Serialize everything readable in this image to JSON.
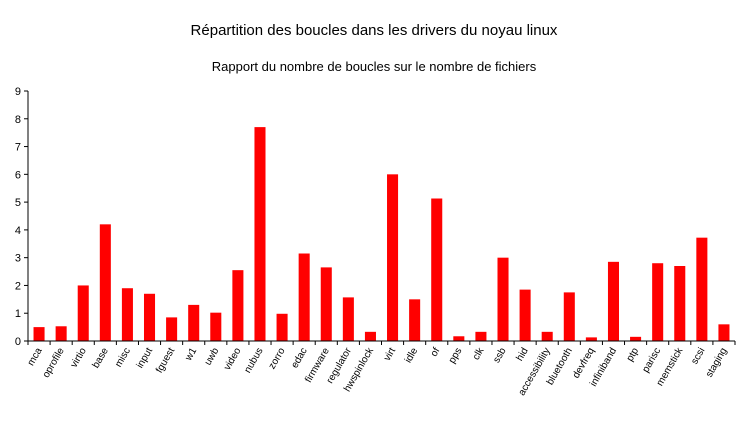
{
  "chart_data": {
    "type": "bar",
    "title": "Répartition des boucles dans les drivers du noyau linux",
    "subtitle": "Rapport du nombre de boucles sur le nombre de fichiers",
    "xlabel": "",
    "ylabel": "",
    "ylim": [
      0,
      9
    ],
    "yticks": [
      0,
      1,
      2,
      3,
      4,
      5,
      6,
      7,
      8,
      9
    ],
    "grid": false,
    "legend": "none",
    "bar_color": "#ff0000",
    "categories": [
      "mca",
      "oprofile",
      "virtio",
      "base",
      "misc",
      "input",
      "fguest",
      "w1",
      "uwb",
      "video",
      "nubus",
      "zorro",
      "edac",
      "firmware",
      "regulator",
      "hwspinlock",
      "virt",
      "idle",
      "of",
      "pps",
      "clk",
      "ssb",
      "hid",
      "accessibility",
      "bluetooth",
      "devfreq",
      "infiniband",
      "ptp",
      "parisc",
      "memstick",
      "scsi",
      "staging"
    ],
    "values": [
      0.5,
      0.53,
      2.0,
      4.2,
      1.9,
      1.7,
      0.85,
      1.3,
      1.02,
      2.55,
      7.7,
      0.98,
      3.15,
      2.65,
      1.57,
      0.33,
      6.0,
      1.5,
      5.13,
      0.17,
      0.33,
      3.0,
      1.85,
      0.33,
      1.75,
      0.13,
      2.85,
      0.15,
      2.8,
      2.7,
      3.72,
      0.6
    ]
  }
}
